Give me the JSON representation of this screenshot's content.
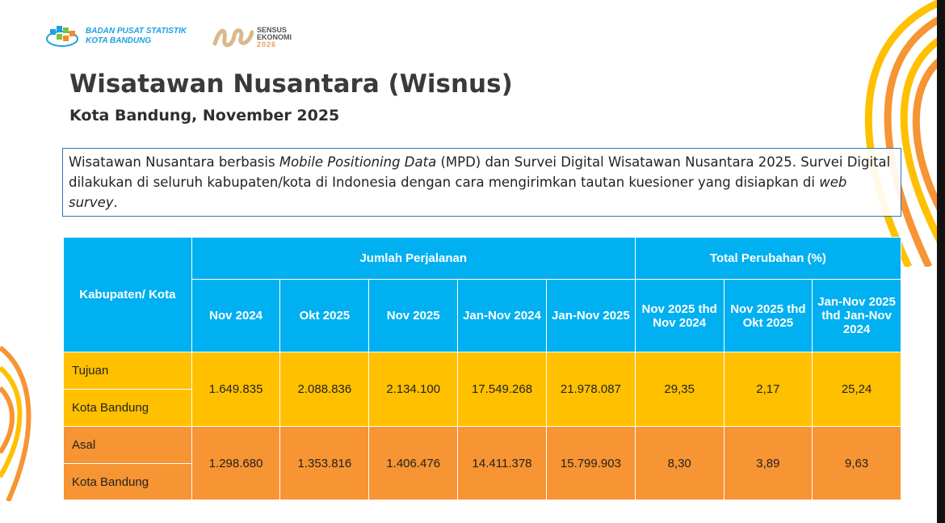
{
  "header": {
    "org_line1": "BADAN PUSAT STATISTIK",
    "org_line2": "KOTA BANDUNG",
    "census_line1": "SENSUS",
    "census_line2": "EKONOMI",
    "census_year": "2026"
  },
  "title": "Wisatawan Nusantara (Wisnus)",
  "subtitle": "Kota Bandung, November 2025",
  "description": {
    "p1": "Wisatawan Nusantara berbasis ",
    "i1": "Mobile Positioning Data",
    "p2": " (MPD) dan Survei Digital Wisatawan Nusantara 2025. Survei Digital dilakukan di seluruh kabupaten/kota di Indonesia dengan cara mengirimkan tautan kuesioner yang disiapkan di ",
    "i2": "web survey",
    "p3": "."
  },
  "colors": {
    "header": "#00b0f0",
    "tujuan": "#ffc000",
    "asal": "#f79433"
  },
  "table": {
    "col_region": "Kabupaten/ Kota",
    "group1": "Jumlah Perjalanan",
    "group2": "Total Perubahan (%)",
    "columns": [
      "Nov 2024",
      "Okt 2025",
      "Nov 2025",
      "Jan-Nov 2024",
      "Jan-Nov 2025",
      "Nov 2025 thd Nov 2024",
      "Nov 2025 thd Okt 2025",
      "Jan-Nov 2025 thd Jan-Nov 2024"
    ],
    "rows": [
      {
        "type": "Tujuan",
        "region": "Kota Bandung",
        "values": [
          "1.649.835",
          "2.088.836",
          "2.134.100",
          "17.549.268",
          "21.978.087",
          "29,35",
          "2,17",
          "25,24"
        ]
      },
      {
        "type": "Asal",
        "region": "Kota Bandung",
        "values": [
          "1.298.680",
          "1.353.816",
          "1.406.476",
          "14.411.378",
          "15.799.903",
          "8,30",
          "3,89",
          "9,63"
        ]
      }
    ]
  }
}
